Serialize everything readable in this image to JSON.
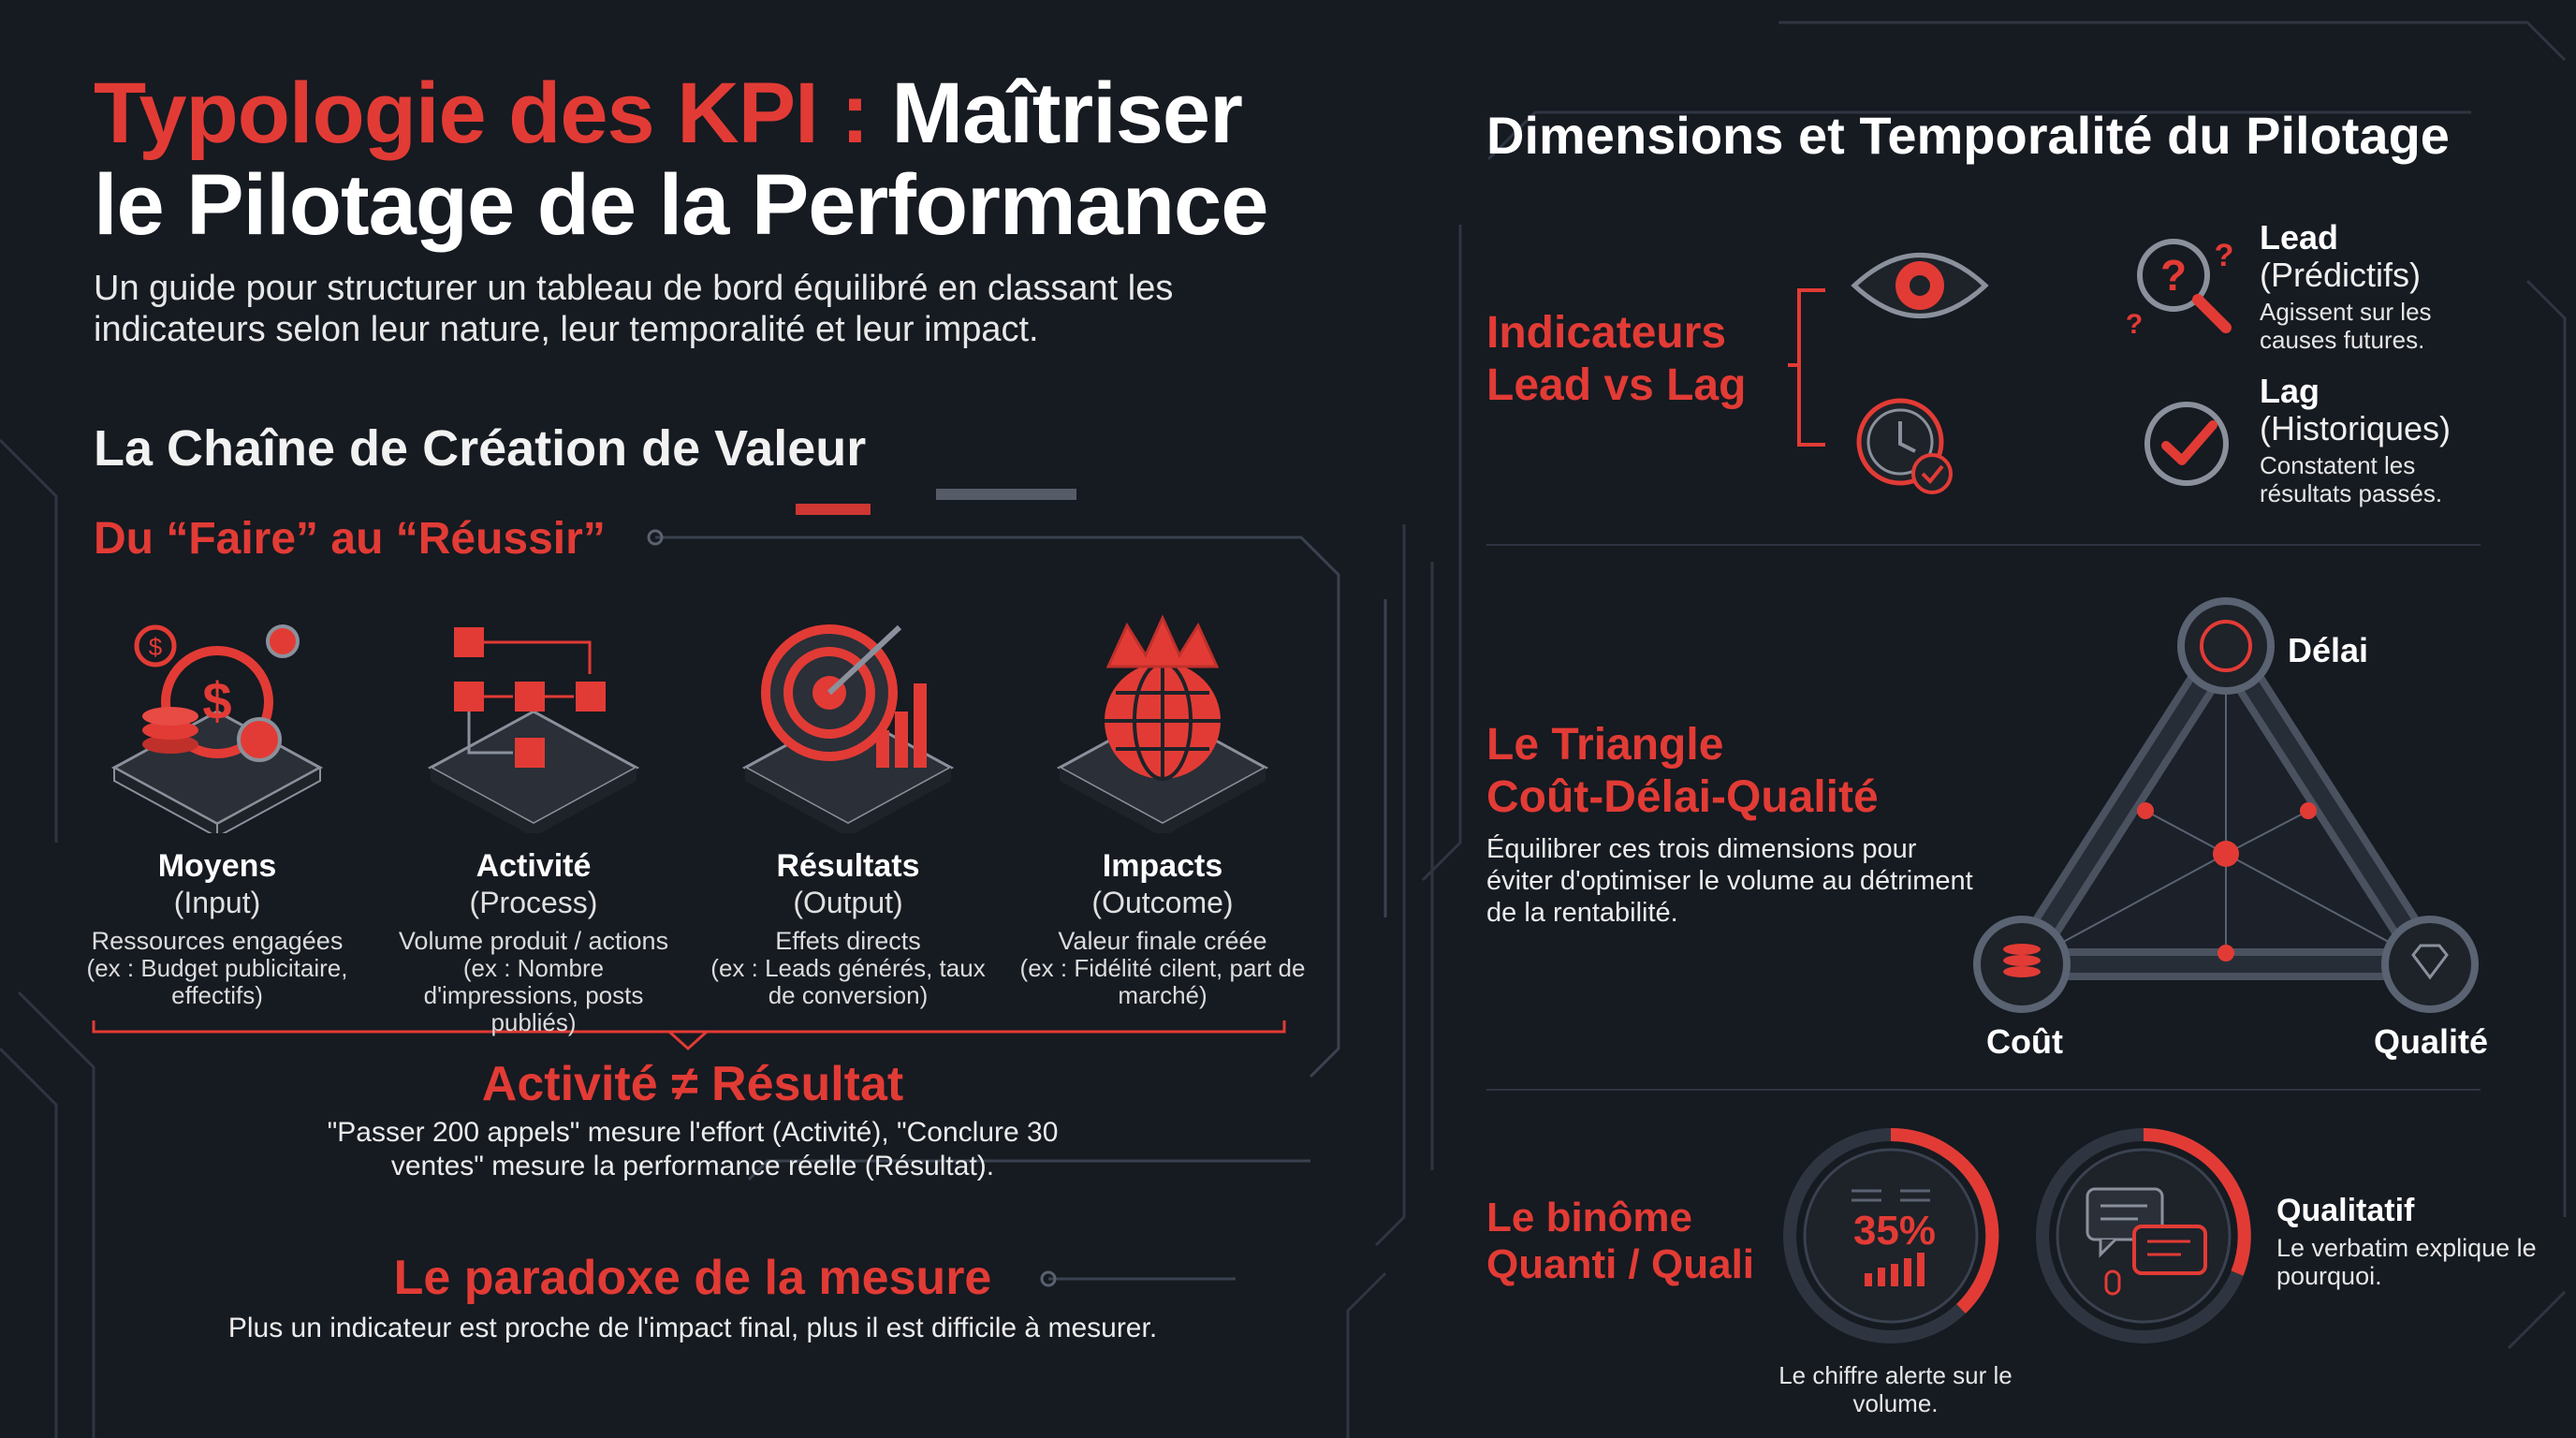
{
  "header": {
    "title_red": "Typologie des KPI : ",
    "title_white_1": "Maîtriser",
    "title_white_2": "le Pilotage de la Performance",
    "subtitle": "Un guide pour structurer un tableau de bord équilibré en classant les indicateurs selon leur nature, leur temporalité et leur impact."
  },
  "chain": {
    "title": "La Chaîne de Création de Valeur",
    "subtitle": "Du “Faire” au “Réussir”",
    "steps": [
      {
        "name": "Moyens",
        "type": "(Input)",
        "desc": "Ressources engagées",
        "example": "(ex : Budget publicitaire, effectifs)",
        "icon": "budget-gears-icon"
      },
      {
        "name": "Activité",
        "type": "(Process)",
        "desc": "Volume produit / actions",
        "example": "(ex : Nombre d'impressions, posts publiés)",
        "icon": "process-flow-icon"
      },
      {
        "name": "Résultats",
        "type": "(Output)",
        "desc": "Effets directs",
        "example": "(ex : Leads générés, taux de conversion)",
        "icon": "target-chart-icon"
      },
      {
        "name": "Impacts",
        "type": "(Outcome)",
        "desc": "Valeur finale créée",
        "example": "(ex : Fidélité cilent, part de marché)",
        "icon": "crown-globe-icon"
      }
    ],
    "activity_title": "Activité ≠ Résultat",
    "activity_desc": "\"Passer 200 appels\" mesure l'effort (Activité), \"Conclure 30 ventes\" mesure la performance réelle (Résultat).",
    "paradox_title": "Le paradoxe de la mesure",
    "paradox_desc": "Plus un indicateur est proche de l'impact final, plus il est difficile à mesurer."
  },
  "dimensions": {
    "title": "Dimensions et Temporalité du Pilotage",
    "lead_lag": {
      "title": "Indicateurs Lead vs Lag",
      "lead": {
        "name": "Lead",
        "type": "(Prédictifs)",
        "desc": "Agissent sur les causes futures."
      },
      "lag": {
        "name": "Lag",
        "type": "(Historiques)",
        "desc": "Constatent les résultats passés."
      }
    },
    "triangle": {
      "title_1": "Le Triangle",
      "title_2": "Coût-Délai-Qualité",
      "desc": "Équilibrer ces trois dimensions pour éviter d'optimiser le volume au détriment de la rentabilité.",
      "labels": {
        "delai": "Délai",
        "cout": "Coût",
        "qualite": "Qualité"
      }
    },
    "binome": {
      "title": "Le binôme Quanti / Quali",
      "quanti_value": "35%",
      "quanti_caption": "Le chiffre alerte sur le volume.",
      "quali_title": "Qualitatif",
      "quali_desc": "Le verbatim explique le pourquoi."
    }
  },
  "colors": {
    "accent": "#e23b35",
    "background": "#161a21",
    "line": "#3a4250"
  }
}
